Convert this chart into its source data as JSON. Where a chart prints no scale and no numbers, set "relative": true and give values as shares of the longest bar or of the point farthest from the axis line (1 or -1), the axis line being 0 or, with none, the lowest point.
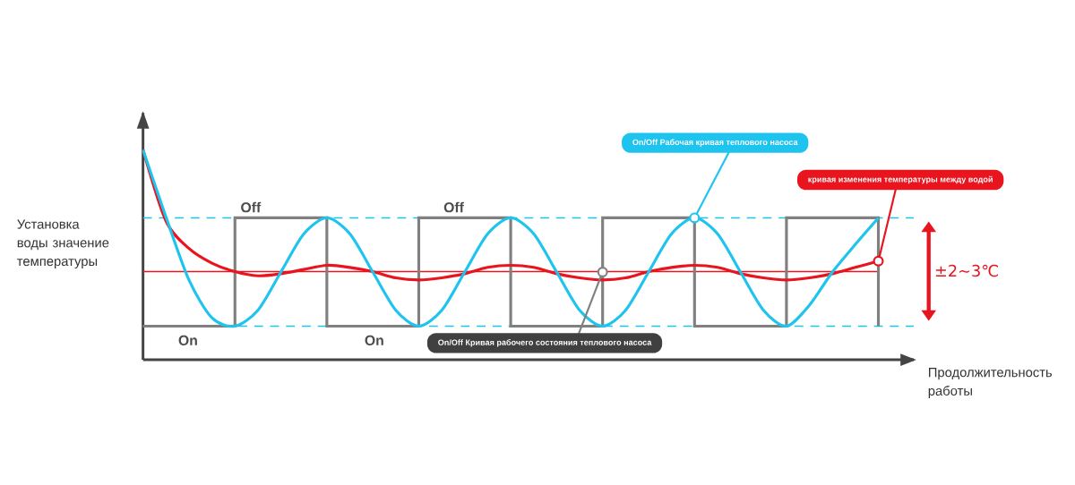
{
  "chart_data": {
    "type": "line",
    "relative": true,
    "xlabel": "Продолжительность работы",
    "ylabel": "Установка воды значение температуры",
    "categories": [
      null,
      null,
      null,
      null,
      null,
      null,
      null,
      null,
      null,
      null,
      null,
      null,
      null,
      null,
      null,
      null,
      null,
      null,
      null,
      null,
      null,
      null,
      null,
      null,
      null,
      null,
      null,
      null,
      null,
      null,
      null,
      null,
      null
    ],
    "series": [
      {
        "name": "On/Off Кривая рабочего состояния теплового насоса",
        "type": "step",
        "color": "#808080",
        "values": [
          0.16,
          0.16,
          0.16,
          0.16,
          0.676,
          0.676,
          0.676,
          0.676,
          0.16,
          0.16,
          0.16,
          0.16,
          0.676,
          0.676,
          0.676,
          0.676,
          0.16,
          0.16,
          0.16,
          0.16,
          0.676,
          0.676,
          0.676,
          0.676,
          0.16,
          0.16,
          0.16,
          0.16,
          0.676,
          0.676,
          0.676,
          0.676,
          0.16
        ]
      },
      {
        "name": "On/Off Рабочая кривая теплового насоса",
        "type": "line",
        "color": "#1ec4ee",
        "values": [
          1.0,
          0.68,
          0.38,
          0.2,
          0.16,
          0.236,
          0.418,
          0.6,
          0.676,
          0.6,
          0.418,
          0.236,
          0.16,
          0.236,
          0.418,
          0.6,
          0.676,
          0.6,
          0.418,
          0.236,
          0.16,
          0.236,
          0.418,
          0.6,
          0.676,
          0.6,
          0.418,
          0.236,
          0.16,
          0.26,
          0.418,
          0.55,
          0.676
        ]
      },
      {
        "name": "кривая изменения температуры между водой",
        "type": "line",
        "color": "#e8141e",
        "values": [
          1.0,
          0.66,
          0.53,
          0.46,
          0.42,
          0.4,
          0.41,
          0.43,
          0.45,
          0.44,
          0.42,
          0.39,
          0.38,
          0.39,
          0.41,
          0.44,
          0.45,
          0.44,
          0.41,
          0.39,
          0.38,
          0.39,
          0.42,
          0.44,
          0.45,
          0.44,
          0.41,
          0.39,
          0.38,
          0.39,
          0.41,
          0.44,
          0.47
        ]
      }
    ],
    "ref_lines": [
      {
        "axis": "y",
        "value": 0.676,
        "color": "#1ec4ee",
        "line_style": "dashed"
      },
      {
        "axis": "y",
        "value": 0.16,
        "color": "#1ec4ee",
        "line_style": "dashed"
      },
      {
        "axis": "y",
        "value": 0.42,
        "color": "#e8141e",
        "line_style": "solid"
      }
    ],
    "annotations": [
      "Off",
      "Off",
      "On",
      "On",
      "±2~3℃"
    ]
  }
}
